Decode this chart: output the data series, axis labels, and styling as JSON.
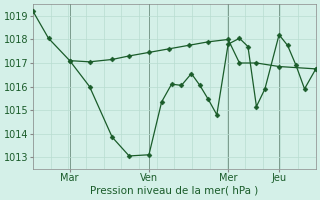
{
  "background_color": "#d4f0e8",
  "grid_color": "#b8ddd0",
  "line_color": "#1a5c2a",
  "marker_color": "#1a5c2a",
  "xlabel": "Pression niveau de la mer( hPa )",
  "yticks": [
    1013,
    1014,
    1015,
    1016,
    1017,
    1018,
    1019
  ],
  "ylim": [
    1012.5,
    1019.5
  ],
  "xtick_labels": [
    "Mar",
    "Ven",
    "Mer",
    "Jeu"
  ],
  "xtick_positions": [
    0.13,
    0.41,
    0.69,
    0.87
  ],
  "vline_positions": [
    0.13,
    0.41,
    0.69,
    0.87
  ],
  "line1_x": [
    0.0,
    0.055,
    0.13,
    0.2,
    0.28,
    0.34,
    0.41,
    0.48,
    0.55,
    0.62,
    0.69,
    0.73,
    0.79,
    0.87,
    1.0
  ],
  "line1_y": [
    1019.2,
    1018.05,
    1017.1,
    1017.05,
    1017.15,
    1017.3,
    1017.45,
    1017.6,
    1017.75,
    1017.9,
    1018.0,
    1017.0,
    1017.0,
    1016.85,
    1016.75
  ],
  "line2_x": [
    0.13,
    0.2,
    0.28,
    0.34,
    0.41,
    0.455,
    0.49,
    0.525,
    0.56,
    0.59,
    0.62,
    0.65,
    0.69,
    0.73,
    0.76,
    0.79,
    0.82,
    0.87,
    0.9,
    0.93,
    0.96,
    1.0
  ],
  "line2_y": [
    1017.1,
    1016.0,
    1013.85,
    1013.05,
    1013.1,
    1015.35,
    1016.1,
    1016.05,
    1016.55,
    1016.05,
    1015.45,
    1014.8,
    1017.8,
    1018.05,
    1017.7,
    1015.15,
    1015.9,
    1018.2,
    1017.75,
    1016.9,
    1015.9,
    1016.75
  ],
  "n_xgrid": 16
}
